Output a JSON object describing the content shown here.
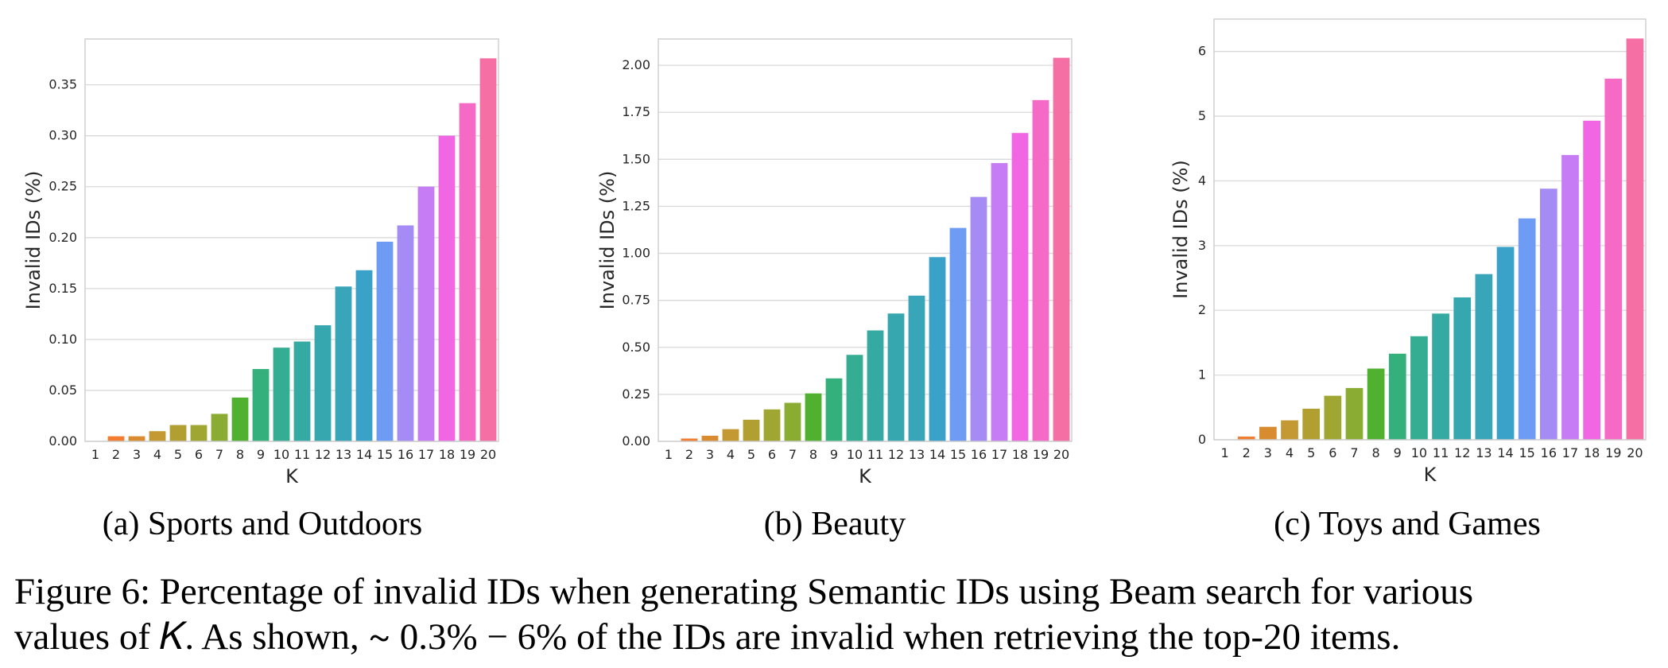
{
  "chart_data": [
    {
      "type": "bar",
      "caption": "(a) Sports and Outdoors",
      "xlabel": "K",
      "ylabel": "Invalid IDs (%)",
      "categories": [
        "1",
        "2",
        "3",
        "4",
        "5",
        "6",
        "7",
        "8",
        "9",
        "10",
        "11",
        "12",
        "13",
        "14",
        "15",
        "16",
        "17",
        "18",
        "19",
        "20"
      ],
      "values": [
        0.0,
        0.005,
        0.005,
        0.01,
        0.016,
        0.016,
        0.027,
        0.043,
        0.071,
        0.092,
        0.098,
        0.114,
        0.152,
        0.168,
        0.196,
        0.212,
        0.25,
        0.3,
        0.332,
        0.376
      ],
      "ylim": [
        0,
        0.395
      ],
      "yticks": [
        0.0,
        0.05,
        0.1,
        0.15,
        0.2,
        0.25,
        0.3,
        0.35
      ],
      "ytick_labels": [
        "0.00",
        "0.05",
        "0.10",
        "0.15",
        "0.20",
        "0.25",
        "0.30",
        "0.35"
      ],
      "grid": true,
      "legend": false
    },
    {
      "type": "bar",
      "caption": "(b) Beauty",
      "xlabel": "K",
      "ylabel": "Invalid IDs (%)",
      "categories": [
        "1",
        "2",
        "3",
        "4",
        "5",
        "6",
        "7",
        "8",
        "9",
        "10",
        "11",
        "12",
        "13",
        "14",
        "15",
        "16",
        "17",
        "18",
        "19",
        "20"
      ],
      "values": [
        0.0,
        0.015,
        0.03,
        0.065,
        0.115,
        0.17,
        0.205,
        0.255,
        0.335,
        0.46,
        0.59,
        0.68,
        0.775,
        0.98,
        1.135,
        1.3,
        1.48,
        1.64,
        1.815,
        2.04
      ],
      "ylim": [
        0,
        2.14
      ],
      "yticks": [
        0.0,
        0.25,
        0.5,
        0.75,
        1.0,
        1.25,
        1.5,
        1.75,
        2.0
      ],
      "ytick_labels": [
        "0.00",
        "0.25",
        "0.50",
        "0.75",
        "1.00",
        "1.25",
        "1.50",
        "1.75",
        "2.00"
      ],
      "grid": true,
      "legend": false
    },
    {
      "type": "bar",
      "caption": "(c) Toys and Games",
      "xlabel": "K",
      "ylabel": "Invalid IDs (%)",
      "categories": [
        "1",
        "2",
        "3",
        "4",
        "5",
        "6",
        "7",
        "8",
        "9",
        "10",
        "11",
        "12",
        "13",
        "14",
        "15",
        "16",
        "17",
        "18",
        "19",
        "20"
      ],
      "values": [
        0.0,
        0.05,
        0.2,
        0.3,
        0.48,
        0.68,
        0.8,
        1.1,
        1.33,
        1.6,
        1.95,
        2.2,
        2.56,
        2.98,
        3.42,
        3.88,
        4.4,
        4.93,
        5.58,
        6.2
      ],
      "ylim": [
        0,
        6.5
      ],
      "yticks": [
        0,
        1,
        2,
        3,
        4,
        5,
        6
      ],
      "ytick_labels": [
        "0",
        "1",
        "2",
        "3",
        "4",
        "5",
        "6"
      ],
      "grid": true,
      "legend": false
    }
  ],
  "colors": [
    "#f77189",
    "#f27d30",
    "#d98b30",
    "#c49833",
    "#b19f32",
    "#a0a632",
    "#8aac32",
    "#50b131",
    "#33b07b",
    "#34ad93",
    "#35aaa2",
    "#36a7ae",
    "#38a5b9",
    "#3aa1c8",
    "#6e9bf4",
    "#a48cf4",
    "#c67cf4",
    "#f066e3",
    "#f56ac4",
    "#f66fa4"
  ],
  "figure_caption_line1": "Figure 6: Percentage of invalid IDs when generating Semantic IDs using Beam search for various",
  "figure_caption_line2": "values of 𝐾. As shown, ∼ 0.3% − 6% of the IDs are invalid when retrieving the top-20 items."
}
